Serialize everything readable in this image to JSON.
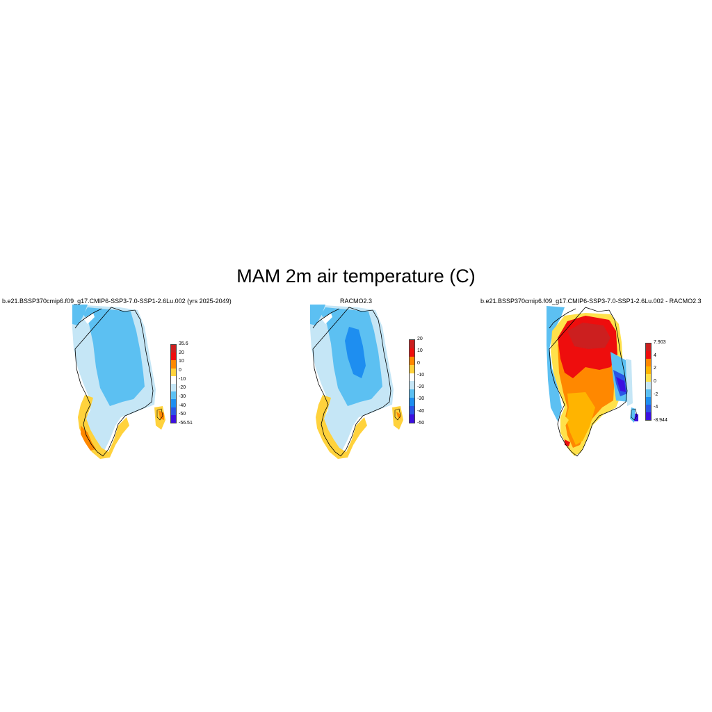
{
  "title": "MAM 2m air temperature (C)",
  "panels": [
    {
      "id": "model",
      "title": "b.e21.BSSP370cmip6.f09_g17.CMIP6-SSP3-7.0-SSP1-2.6Lu.002 (yrs 2025-2049)",
      "colorbar": {
        "colors": [
          "#cc1f1f",
          "#ee0d0d",
          "#ff8800",
          "#ffd23c",
          "#ffffff",
          "#c5e6f6",
          "#5cc0f2",
          "#1e8ef0",
          "#2a55e6",
          "#3c10e0"
        ],
        "labels": [
          "35.6",
          "20",
          "10",
          "0",
          "-10",
          "-20",
          "-30",
          "-40",
          "-50",
          "-56.51"
        ]
      }
    },
    {
      "id": "obs",
      "title": "RACMO2.3",
      "colorbar": {
        "colors": [
          "#cc1f1f",
          "#ee0d0d",
          "#ff8800",
          "#ffd23c",
          "#ffffff",
          "#c5e6f6",
          "#5cc0f2",
          "#1e8ef0",
          "#2a55e6",
          "#3c10e0"
        ],
        "labels": [
          "20",
          "10",
          "0",
          "-10",
          "-20",
          "-30",
          "-40",
          "-50"
        ]
      }
    },
    {
      "id": "diff",
      "title": "b.e21.BSSP370cmip6.f09_g17.CMIP6-SSP3-7.0-SSP1-2.6Lu.002 - RACMO2.3",
      "colorbar": {
        "colors": [
          "#cc1f1f",
          "#ee0d0d",
          "#ff8800",
          "#ffb400",
          "#ffe14a",
          "#c5e6f6",
          "#5cc0f2",
          "#1e8ef0",
          "#2a55e6",
          "#3c10e0"
        ],
        "labels": [
          "7.903",
          "4",
          "2",
          "0",
          "-2",
          "-4",
          "-8.944"
        ]
      }
    }
  ]
}
